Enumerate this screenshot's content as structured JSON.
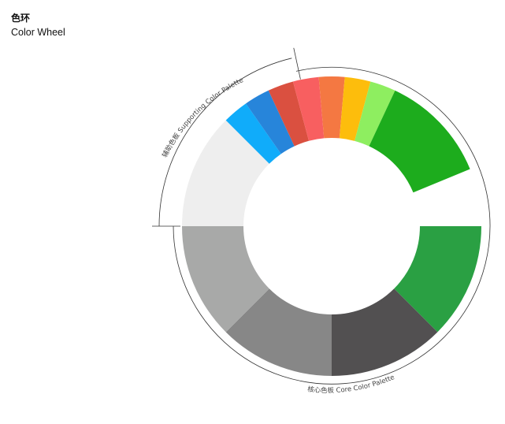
{
  "header": {
    "title_cn": "色环",
    "title_en": "Color Wheel"
  },
  "wheel": {
    "core_palette": {
      "label": "核心色板  Core  Color Palette",
      "segments": [
        {
          "name": "green-dark",
          "color": "#2AA043",
          "share": 0.125
        },
        {
          "name": "charcoal",
          "color": "#525051",
          "share": 0.125
        },
        {
          "name": "gray-medium",
          "color": "#878787",
          "share": 0.125
        },
        {
          "name": "gray-light",
          "color": "#A8A9A8",
          "share": 0.125
        },
        {
          "name": "gray-lightest",
          "color": "#EEEEEE",
          "share": 0.125
        }
      ]
    },
    "supporting_palette": {
      "label": "辅助色板 Supporting Color Palette",
      "segments": [
        {
          "name": "sky-blue",
          "color": "#10ACFA",
          "share": 0.0278
        },
        {
          "name": "blue",
          "color": "#2785DA",
          "share": 0.0278
        },
        {
          "name": "red",
          "color": "#DA5040",
          "share": 0.0278
        },
        {
          "name": "salmon",
          "color": "#F85F60",
          "share": 0.0278
        },
        {
          "name": "orange",
          "color": "#F47842",
          "share": 0.0278
        },
        {
          "name": "amber",
          "color": "#FDBD0C",
          "share": 0.0278
        },
        {
          "name": "lime",
          "color": "#8EEE60",
          "share": 0.0278
        }
      ]
    },
    "primary_green": {
      "name": "green-primary",
      "color": "#1DAC1D",
      "share": 0.1181
    }
  }
}
